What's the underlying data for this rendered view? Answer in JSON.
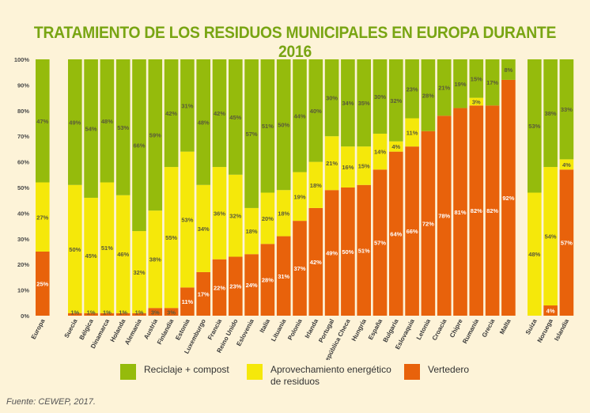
{
  "chart_data": {
    "type": "bar",
    "stacked": true,
    "title": "TRATAMIENTO DE LOS RESIDUOS MUNICIPALES EN EUROPA DURANTE 2016",
    "ylim": [
      0,
      100
    ],
    "yticks": [
      "0%",
      "10%",
      "20%",
      "30%",
      "40%",
      "50%",
      "60%",
      "70%",
      "80%",
      "90%",
      "100%"
    ],
    "categories": [
      "Europa",
      "Suecia",
      "Bélgica",
      "Dinamarca",
      "Holanda",
      "Alemania",
      "Austria",
      "Finlandia",
      "Estonia",
      "Luxemburgo",
      "Francia",
      "Reino Unido",
      "Eslovenia",
      "Italia",
      "Lituania",
      "Polonia",
      "Irlanda",
      "Portugal",
      "República Checa",
      "Hungría",
      "España",
      "Bulgaria",
      "Eslovaquia",
      "Letonia",
      "Croacia",
      "Chipre",
      "Rumanía",
      "Grecia",
      "Malta",
      "Suiza",
      "Noruega",
      "Islandia"
    ],
    "groups": [
      1,
      28,
      3
    ],
    "series": [
      {
        "name": "Vertedero",
        "color": "#e8620b",
        "values": [
          25,
          1,
          1,
          1,
          1,
          1,
          3,
          3,
          11,
          17,
          22,
          23,
          24,
          28,
          31,
          37,
          42,
          49,
          50,
          51,
          57,
          64,
          66,
          72,
          78,
          81,
          82,
          82,
          92,
          0,
          4,
          57
        ]
      },
      {
        "name": "Aprovechamiento energético de residuos",
        "color": "#f5e80a",
        "values": [
          27,
          50,
          45,
          51,
          46,
          32,
          38,
          55,
          53,
          34,
          36,
          32,
          18,
          20,
          18,
          19,
          18,
          21,
          16,
          15,
          14,
          4,
          11,
          0,
          0,
          0,
          3,
          0,
          0,
          48,
          54,
          4
        ]
      },
      {
        "name": "Reciclaje + compost",
        "color": "#95bb0c",
        "values": [
          47,
          49,
          54,
          48,
          53,
          66,
          59,
          42,
          31,
          48,
          42,
          45,
          57,
          51,
          50,
          44,
          40,
          30,
          34,
          35,
          30,
          32,
          23,
          28,
          21,
          19,
          15,
          17,
          8,
          53,
          38,
          33
        ]
      }
    ]
  },
  "legend": {
    "recycling": "Reciclaje + compost",
    "energy_line1": "Aprovechamiento energético",
    "energy_line2": "de residuos",
    "landfill": "Vertedero"
  },
  "source": "Fuente: CEWEP, 2017.",
  "colors": {
    "recycling": "#95bb0c",
    "energy": "#f5e80a",
    "landfill": "#e8620b",
    "title": "#79a513"
  }
}
